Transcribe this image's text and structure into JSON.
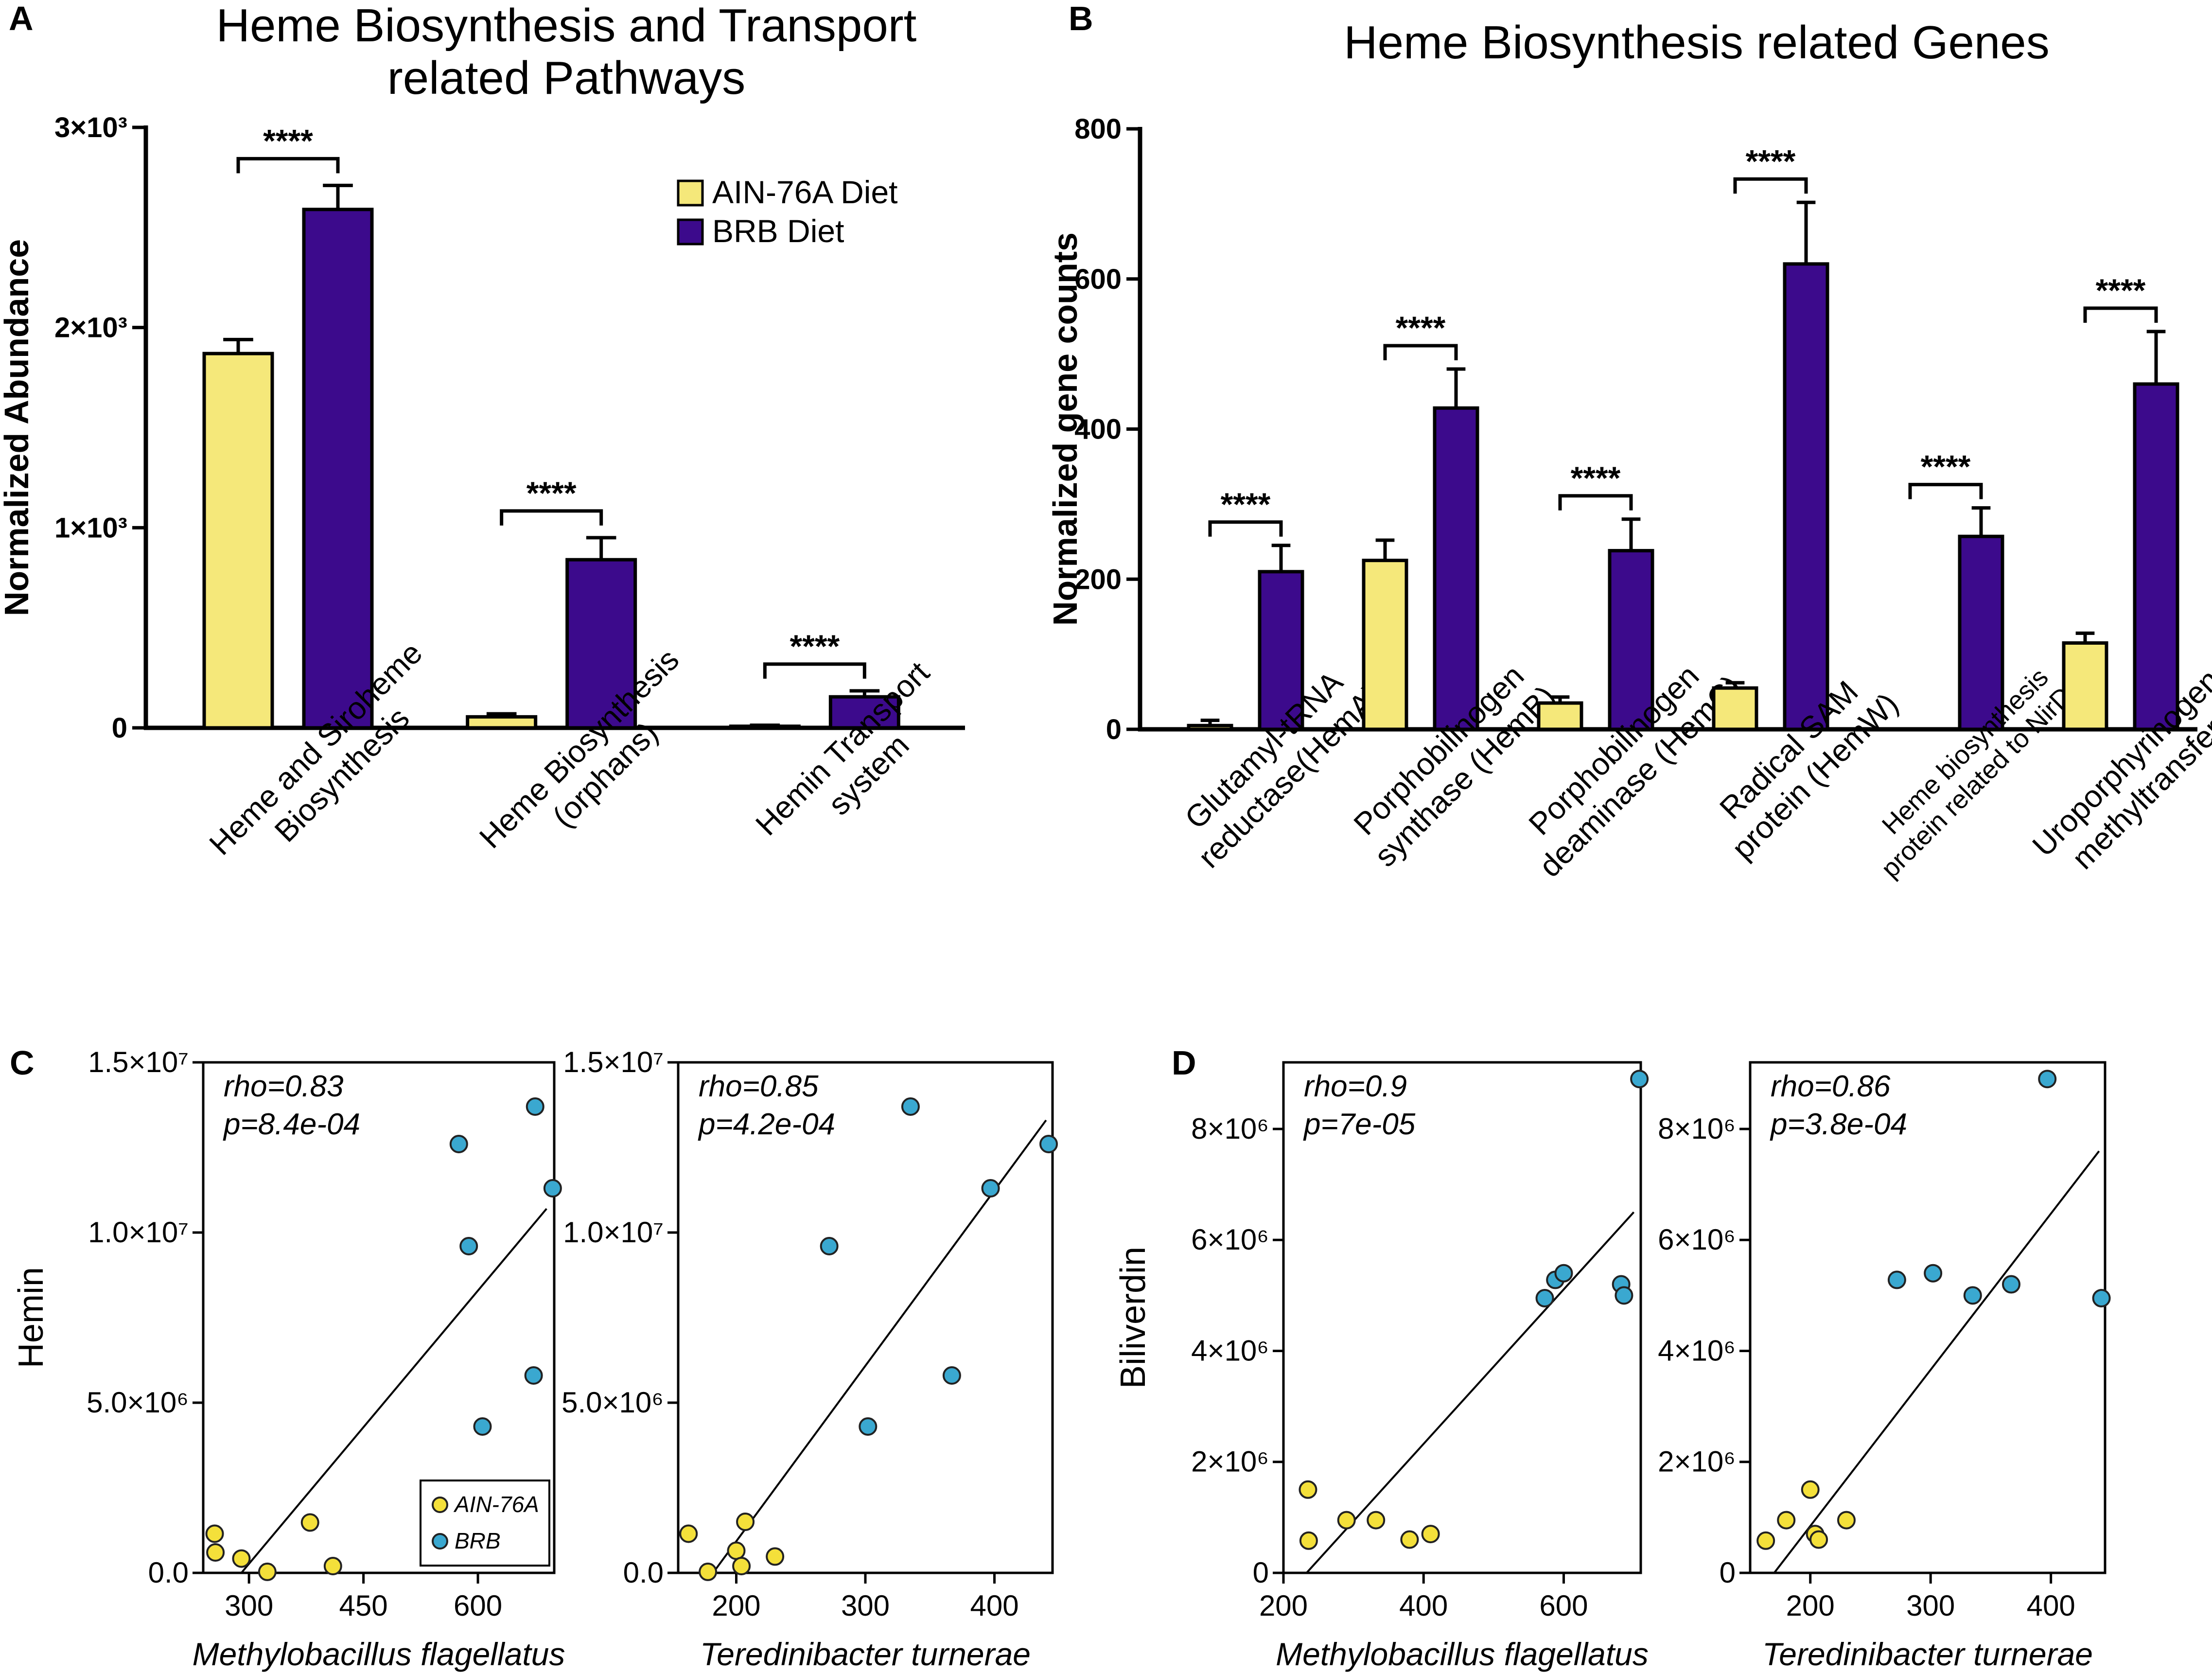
{
  "colors": {
    "ain": "#f5e87a",
    "brb": "#3c0a8c",
    "ain_point": "#f4e03a",
    "brb_point": "#3aa8d0"
  },
  "chart_data": [
    {
      "panel": "A",
      "type": "bar",
      "title_lines": [
        "Heme Biosynthesis and Transport",
        "related Pathways"
      ],
      "ylabel": "Normalized Abundance",
      "ylim": [
        0,
        3000
      ],
      "yticks": [
        {
          "value": 0,
          "label": "0"
        },
        {
          "value": 1000,
          "label": "1×10³"
        },
        {
          "value": 2000,
          "label": "2×10³"
        },
        {
          "value": 3000,
          "label": "3×10³"
        }
      ],
      "categories": [
        {
          "lines": [
            "Heme and Siroheme",
            "Biosynthesis"
          ]
        },
        {
          "lines": [
            "Heme Biosynthesis",
            "(orphans)"
          ]
        },
        {
          "lines": [
            "Hemin Transport",
            "system"
          ]
        }
      ],
      "series": [
        {
          "name": "AIN-76A Diet",
          "values": [
            1870,
            55,
            8
          ],
          "errors": [
            70,
            15,
            5
          ]
        },
        {
          "name": "BRB Diet",
          "values": [
            2590,
            840,
            155
          ],
          "errors": [
            120,
            110,
            30
          ]
        }
      ],
      "significance": [
        "****",
        "****",
        "****"
      ],
      "legend": [
        "AIN-76A Diet",
        "BRB Diet"
      ]
    },
    {
      "panel": "B",
      "type": "bar",
      "title_lines": [
        "Heme Biosynthesis related Genes"
      ],
      "ylabel": "Normalized gene counts",
      "ylim": [
        0,
        800
      ],
      "yticks": [
        {
          "value": 0,
          "label": "0"
        },
        {
          "value": 200,
          "label": "200"
        },
        {
          "value": 400,
          "label": "400"
        },
        {
          "value": 600,
          "label": "600"
        },
        {
          "value": 800,
          "label": "800"
        }
      ],
      "categories": [
        {
          "lines": [
            "Glutamyl-tRNA",
            "reductase(HemA)"
          ],
          "small": false
        },
        {
          "lines": [
            "Porphobilinogen",
            "synthase (HemB)"
          ],
          "small": false
        },
        {
          "lines": [
            "Porphobilinogen",
            "deaminase (HemC)"
          ],
          "small": false
        },
        {
          "lines": [
            "Radical SAM",
            "protein (HemW)"
          ],
          "small": false
        },
        {
          "lines": [
            "Heme biosynthesis",
            "protein related to NirD/G"
          ],
          "small": true
        },
        {
          "lines": [
            "Uroporphyrinogen-III",
            "methyltransferase"
          ],
          "small": false
        }
      ],
      "series": [
        {
          "name": "AIN-76A Diet",
          "values": [
            5,
            225,
            35,
            55,
            0,
            115
          ],
          "errors": [
            7,
            27,
            8,
            7,
            0,
            13
          ]
        },
        {
          "name": "BRB Diet",
          "values": [
            210,
            428,
            238,
            620,
            257,
            460
          ],
          "errors": [
            35,
            52,
            42,
            82,
            38,
            70
          ]
        }
      ],
      "significance": [
        "****",
        "****",
        "****",
        "****",
        "****",
        "****"
      ]
    },
    {
      "panel": "C",
      "type": "scatter",
      "ylabel": "Hemin",
      "stat_lines": [
        "rho=0.83",
        "p=8.4e-04"
      ],
      "xlabel": "Methylobacillus flagellatus",
      "xlim": [
        240,
        700
      ],
      "ylim": [
        0,
        15000000
      ],
      "xticks": [
        {
          "value": 300,
          "label": "300"
        },
        {
          "value": 450,
          "label": "450"
        },
        {
          "value": 600,
          "label": "600"
        }
      ],
      "yticks": [
        {
          "value": 0,
          "label": "0.0"
        },
        {
          "value": 5000000,
          "label": "5.0×10⁶"
        },
        {
          "value": 10000000,
          "label": "1.0×10⁷"
        },
        {
          "value": 15000000,
          "label": "1.5×10⁷"
        }
      ],
      "fit": [
        [
          290,
          0
        ],
        [
          690,
          10700000
        ]
      ],
      "points": [
        {
          "group": "AIN-76A",
          "x": 255,
          "y": 1150000
        },
        {
          "group": "AIN-76A",
          "x": 256,
          "y": 600000
        },
        {
          "group": "AIN-76A",
          "x": 290,
          "y": 420000
        },
        {
          "group": "AIN-76A",
          "x": 324,
          "y": 30000
        },
        {
          "group": "AIN-76A",
          "x": 380,
          "y": 1480000
        },
        {
          "group": "AIN-76A",
          "x": 410,
          "y": 200000
        },
        {
          "group": "BRB",
          "x": 575,
          "y": 12600000
        },
        {
          "group": "BRB",
          "x": 675,
          "y": 13700000
        },
        {
          "group": "BRB",
          "x": 698,
          "y": 11300000
        },
        {
          "group": "BRB",
          "x": 588,
          "y": 9600000
        },
        {
          "group": "BRB",
          "x": 673,
          "y": 5800000
        },
        {
          "group": "BRB",
          "x": 606,
          "y": 4300000
        }
      ],
      "legend": [
        "AIN-76A",
        "BRB"
      ]
    },
    {
      "panel": "C2",
      "type": "scatter",
      "stat_lines": [
        "rho=0.85",
        "p=4.2e-04"
      ],
      "xlabel": "Teredinibacter turnerae",
      "xlim": [
        155,
        445
      ],
      "ylim": [
        0,
        15000000
      ],
      "xticks": [
        {
          "value": 200,
          "label": "200"
        },
        {
          "value": 300,
          "label": "300"
        },
        {
          "value": 400,
          "label": "400"
        }
      ],
      "yticks": [
        {
          "value": 0,
          "label": "0.0"
        },
        {
          "value": 5000000,
          "label": "5.0×10⁶"
        },
        {
          "value": 10000000,
          "label": "1.0×10⁷"
        },
        {
          "value": 15000000,
          "label": "1.5×10⁷"
        }
      ],
      "fit": [
        [
          182,
          0
        ],
        [
          440,
          13300000
        ]
      ],
      "points": [
        {
          "group": "AIN-76A",
          "x": 163,
          "y": 1150000
        },
        {
          "group": "AIN-76A",
          "x": 178,
          "y": 30000
        },
        {
          "group": "AIN-76A",
          "x": 200,
          "y": 650000
        },
        {
          "group": "AIN-76A",
          "x": 204,
          "y": 200000
        },
        {
          "group": "AIN-76A",
          "x": 207,
          "y": 1500000
        },
        {
          "group": "AIN-76A",
          "x": 230,
          "y": 480000
        },
        {
          "group": "BRB",
          "x": 272,
          "y": 9600000
        },
        {
          "group": "BRB",
          "x": 302,
          "y": 4300000
        },
        {
          "group": "BRB",
          "x": 335,
          "y": 13700000
        },
        {
          "group": "BRB",
          "x": 367,
          "y": 5800000
        },
        {
          "group": "BRB",
          "x": 397,
          "y": 11300000
        },
        {
          "group": "BRB",
          "x": 442,
          "y": 12600000
        }
      ]
    },
    {
      "panel": "D",
      "type": "scatter",
      "ylabel": "Biliverdin",
      "stat_lines": [
        "rho=0.9",
        "p=7e-05"
      ],
      "xlabel": "Methylobacillus flagellatus",
      "xlim": [
        200,
        710
      ],
      "ylim": [
        0,
        9200000
      ],
      "xticks": [
        {
          "value": 200,
          "label": "200"
        },
        {
          "value": 400,
          "label": "400"
        },
        {
          "value": 600,
          "label": "600"
        }
      ],
      "yticks": [
        {
          "value": 0,
          "label": "0"
        },
        {
          "value": 2000000,
          "label": "2×10⁶"
        },
        {
          "value": 4000000,
          "label": "4×10⁶"
        },
        {
          "value": 6000000,
          "label": "6×10⁶"
        },
        {
          "value": 8000000,
          "label": "8×10⁶"
        }
      ],
      "fit": [
        [
          233,
          0
        ],
        [
          700,
          6500000
        ]
      ],
      "points": [
        {
          "group": "AIN-76A",
          "x": 235,
          "y": 1500000
        },
        {
          "group": "AIN-76A",
          "x": 236,
          "y": 580000
        },
        {
          "group": "AIN-76A",
          "x": 290,
          "y": 950000
        },
        {
          "group": "AIN-76A",
          "x": 332,
          "y": 950000
        },
        {
          "group": "AIN-76A",
          "x": 380,
          "y": 600000
        },
        {
          "group": "AIN-76A",
          "x": 410,
          "y": 700000
        },
        {
          "group": "BRB",
          "x": 573,
          "y": 4950000
        },
        {
          "group": "BRB",
          "x": 588,
          "y": 5280000
        },
        {
          "group": "BRB",
          "x": 600,
          "y": 5400000
        },
        {
          "group": "BRB",
          "x": 682,
          "y": 5200000
        },
        {
          "group": "BRB",
          "x": 686,
          "y": 5000000
        },
        {
          "group": "BRB",
          "x": 708,
          "y": 8900000
        }
      ]
    },
    {
      "panel": "D2",
      "type": "scatter",
      "stat_lines": [
        "rho=0.86",
        "p=3.8e-04"
      ],
      "xlabel": "Teredinibacter turnerae",
      "xlim": [
        150,
        445
      ],
      "ylim": [
        0,
        9200000
      ],
      "xticks": [
        {
          "value": 200,
          "label": "200"
        },
        {
          "value": 300,
          "label": "300"
        },
        {
          "value": 400,
          "label": "400"
        }
      ],
      "yticks": [
        {
          "value": 0,
          "label": "0"
        },
        {
          "value": 2000000,
          "label": "2×10⁶"
        },
        {
          "value": 4000000,
          "label": "4×10⁶"
        },
        {
          "value": 6000000,
          "label": "6×10⁶"
        },
        {
          "value": 8000000,
          "label": "8×10⁶"
        }
      ],
      "fit": [
        [
          170,
          0
        ],
        [
          440,
          7600000
        ]
      ],
      "points": [
        {
          "group": "AIN-76A",
          "x": 163,
          "y": 580000
        },
        {
          "group": "AIN-76A",
          "x": 180,
          "y": 950000
        },
        {
          "group": "AIN-76A",
          "x": 200,
          "y": 1500000
        },
        {
          "group": "AIN-76A",
          "x": 204,
          "y": 700000
        },
        {
          "group": "AIN-76A",
          "x": 207,
          "y": 600000
        },
        {
          "group": "AIN-76A",
          "x": 230,
          "y": 950000
        },
        {
          "group": "BRB",
          "x": 272,
          "y": 5280000
        },
        {
          "group": "BRB",
          "x": 302,
          "y": 5400000
        },
        {
          "group": "BRB",
          "x": 335,
          "y": 5000000
        },
        {
          "group": "BRB",
          "x": 367,
          "y": 5200000
        },
        {
          "group": "BRB",
          "x": 397,
          "y": 8900000
        },
        {
          "group": "BRB",
          "x": 442,
          "y": 4950000
        }
      ]
    }
  ],
  "panel_letters": [
    "A",
    "B",
    "C",
    "D"
  ]
}
